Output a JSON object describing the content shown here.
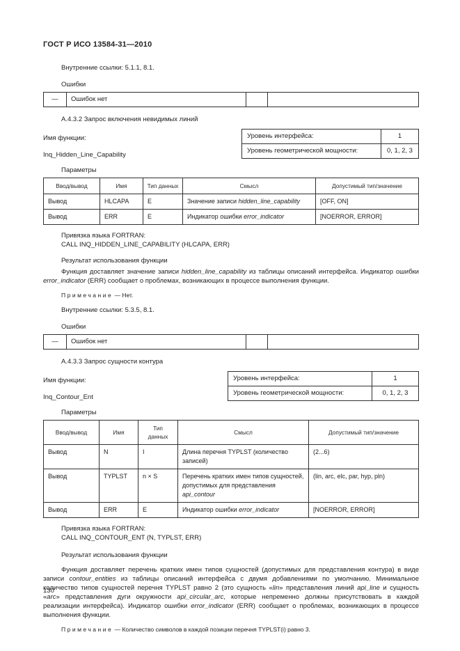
{
  "doc": {
    "header": "ГОСТ Р ИСО 13584-31—2010",
    "page_number": "130"
  },
  "shared": {
    "errors_label": "Ошибки",
    "error_dash": "—",
    "error_text": "Ошибок нет",
    "function_name_label": "Имя функции:",
    "interface_level_label": "Уровень интерфейса:",
    "geometric_power_label": "Уровень геометрической мощности:",
    "parameters_label": "Параметры",
    "fortran_label": "Привязка языка FORTRAN:",
    "result_label": "Результат использования функции",
    "note_word": "Примечание",
    "note_dash": "—",
    "param_headers": [
      "Ввод/вывод",
      "Имя",
      "Тип данных",
      "Смысл",
      "Допустимый тип/значение"
    ]
  },
  "top": {
    "internal_refs": "Внутренние ссылки: 5.1.1, 8.1."
  },
  "a432": {
    "heading": "А.4.3.2 Запрос включения невидимых линий",
    "function_name": "Inq_Hidden_Line_Capability",
    "interface_level": "1",
    "geometric_power": "0, 1, 2, 3",
    "rows": [
      {
        "io": "Вывод",
        "name": "HLCAPA",
        "type": "E",
        "meaning": [
          {
            "t": "Значение записи "
          },
          {
            "t": "hidden_line_capability",
            "i": true
          }
        ],
        "allowed": "[OFF, ON]"
      },
      {
        "io": "Вывод",
        "name": "ERR",
        "type": "E",
        "meaning": [
          {
            "t": "Индикатор ошибки "
          },
          {
            "t": "error_indicator",
            "i": true
          }
        ],
        "allowed": "[NOERROR, ERROR]"
      }
    ],
    "fortran_call": "CALL INQ_HIDDEN_LINE_CAPABILITY (HLCAPA, ERR)",
    "result_paragraph": [
      {
        "t": "Функция доставляет значение записи "
      },
      {
        "t": "hidden_line_capability",
        "i": true
      },
      {
        "t": " из таблицы описаний интерфейса. Индикатор ошибки "
      },
      {
        "t": "error_indicator",
        "i": true
      },
      {
        "t": " (ERR) сообщает о проблемах, возникающих в процессе выполнения функции."
      }
    ],
    "note_text": "Нет.",
    "internal_refs": "Внутренние ссылки: 5.3.5, 8.1."
  },
  "a433": {
    "heading": "А.4.3.3 Запрос сущности контура",
    "function_name": "Inq_Contour_Ent",
    "interface_level": "1",
    "geometric_power": "0, 1, 2, 3",
    "rows": [
      {
        "io": "Вывод",
        "name": "N",
        "type": "I",
        "meaning": [
          {
            "t": "Длина перечня TYPLST (количество записей)"
          }
        ],
        "allowed": "(2...6)"
      },
      {
        "io": "Вывод",
        "name": "TYPLST",
        "type": "n × S",
        "meaning": [
          {
            "t": "Перечень кратких имен типов сущностей, допустимых для представления "
          },
          {
            "t": "api_contour",
            "i": true
          }
        ],
        "allowed": "(lin, arc, elc, par, hyp, pln)"
      },
      {
        "io": "Вывод",
        "name": "ERR",
        "type": "E",
        "meaning": [
          {
            "t": "Индикатор ошибки "
          },
          {
            "t": "error_indicator",
            "i": true
          }
        ],
        "allowed": "[NOERROR, ERROR]"
      }
    ],
    "fortran_call": "CALL INQ_CONTOUR_ENT (N, TYPLST, ERR)",
    "result_paragraph": [
      {
        "t": "Функция доставляет перечень кратких имен типов сущностей (допустимых для представления контура) в виде записи "
      },
      {
        "t": "contour_entities",
        "i": true
      },
      {
        "t": " из таблицы описаний интерфейса с двумя добавлениями по умолчанию. Минимальное количество типов сущностей перечня TYPLST равно 2 (это сущность «"
      },
      {
        "t": "lin",
        "i": true
      },
      {
        "t": "» представления линий "
      },
      {
        "t": "api_line",
        "i": true
      },
      {
        "t": " и сущность «"
      },
      {
        "t": "arc",
        "i": true
      },
      {
        "t": "» представления дуги окружности "
      },
      {
        "t": "api_circular_arc",
        "i": true
      },
      {
        "t": ", которые непременно должны присутствовать в каждой реализации интерфейса). Индикатор ошибки "
      },
      {
        "t": "error_indicator",
        "i": true
      },
      {
        "t": " (ERR) сообщает о проблемах, возникающих в процессе выполнения функции."
      }
    ],
    "note_text": "Количество символов в каждой позиции перечня TYPLST(i) равно 3."
  }
}
